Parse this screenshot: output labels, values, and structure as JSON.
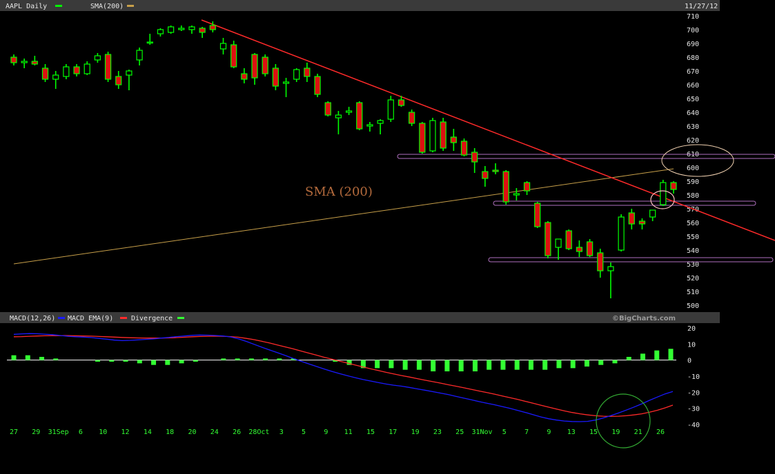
{
  "chart_data": [
    {
      "type": "candlestick",
      "title": "AAPL Daily",
      "date_label": "11/27/12",
      "legend": [
        {
          "name": "AAPL Daily",
          "color": "#00ff00"
        },
        {
          "name": "SMA(200)",
          "color": "#c8a04a"
        }
      ],
      "annotation": "SMA (200)",
      "ylim": [
        500,
        710
      ],
      "yticks": [
        710,
        700,
        690,
        680,
        670,
        660,
        650,
        640,
        630,
        620,
        610,
        600,
        590,
        580,
        570,
        560,
        550,
        540,
        530,
        520,
        510,
        500
      ],
      "xticks": [
        "27",
        "29",
        "31Sep",
        "6",
        "10",
        "12",
        "14",
        "18",
        "20",
        "24",
        "26",
        "28Oct",
        "3",
        "5",
        "9",
        "11",
        "15",
        "17",
        "19",
        "23",
        "25",
        "31Nov",
        "5",
        "7",
        "9",
        "13",
        "15",
        "19",
        "21",
        "26"
      ],
      "candles": [
        {
          "o": 680,
          "h": 682,
          "l": 674,
          "c": 676
        },
        {
          "o": 676,
          "h": 679,
          "l": 672,
          "c": 677
        },
        {
          "o": 677,
          "h": 681,
          "l": 674,
          "c": 675
        },
        {
          "o": 672,
          "h": 675,
          "l": 662,
          "c": 664
        },
        {
          "o": 664,
          "h": 670,
          "l": 657,
          "c": 667
        },
        {
          "o": 666,
          "h": 675,
          "l": 664,
          "c": 673
        },
        {
          "o": 673,
          "h": 675,
          "l": 666,
          "c": 668
        },
        {
          "o": 668,
          "h": 677,
          "l": 667,
          "c": 675
        },
        {
          "o": 678,
          "h": 683,
          "l": 676,
          "c": 681
        },
        {
          "o": 682,
          "h": 684,
          "l": 662,
          "c": 664
        },
        {
          "o": 666,
          "h": 670,
          "l": 657,
          "c": 660
        },
        {
          "o": 667,
          "h": 671,
          "l": 656,
          "c": 670
        },
        {
          "o": 678,
          "h": 687,
          "l": 674,
          "c": 685
        },
        {
          "o": 691,
          "h": 697,
          "l": 689,
          "c": 691
        },
        {
          "o": 697,
          "h": 701,
          "l": 695,
          "c": 700
        },
        {
          "o": 698,
          "h": 703,
          "l": 697,
          "c": 702
        },
        {
          "o": 700,
          "h": 703,
          "l": 699,
          "c": 701
        },
        {
          "o": 700,
          "h": 703,
          "l": 697,
          "c": 702
        },
        {
          "o": 701,
          "h": 702,
          "l": 694,
          "c": 698
        },
        {
          "o": 703,
          "h": 706,
          "l": 698,
          "c": 700
        },
        {
          "o": 686,
          "h": 694,
          "l": 682,
          "c": 690
        },
        {
          "o": 689,
          "h": 692,
          "l": 672,
          "c": 673
        },
        {
          "o": 668,
          "h": 672,
          "l": 661,
          "c": 664
        },
        {
          "o": 682,
          "h": 683,
          "l": 660,
          "c": 665
        },
        {
          "o": 680,
          "h": 682,
          "l": 666,
          "c": 668
        },
        {
          "o": 672,
          "h": 675,
          "l": 656,
          "c": 659
        },
        {
          "o": 661,
          "h": 665,
          "l": 651,
          "c": 662
        },
        {
          "o": 664,
          "h": 672,
          "l": 662,
          "c": 671
        },
        {
          "o": 672,
          "h": 676,
          "l": 662,
          "c": 666
        },
        {
          "o": 666,
          "h": 668,
          "l": 651,
          "c": 653
        },
        {
          "o": 647,
          "h": 648,
          "l": 637,
          "c": 638
        },
        {
          "o": 636,
          "h": 641,
          "l": 624,
          "c": 638
        },
        {
          "o": 640,
          "h": 644,
          "l": 638,
          "c": 641
        },
        {
          "o": 647,
          "h": 648,
          "l": 627,
          "c": 628
        },
        {
          "o": 630,
          "h": 633,
          "l": 626,
          "c": 631
        },
        {
          "o": 632,
          "h": 635,
          "l": 624,
          "c": 634
        },
        {
          "o": 635,
          "h": 652,
          "l": 633,
          "c": 649
        },
        {
          "o": 649,
          "h": 652,
          "l": 644,
          "c": 645
        },
        {
          "o": 640,
          "h": 642,
          "l": 630,
          "c": 632
        },
        {
          "o": 632,
          "h": 633,
          "l": 610,
          "c": 611
        },
        {
          "o": 612,
          "h": 636,
          "l": 611,
          "c": 634
        },
        {
          "o": 633,
          "h": 636,
          "l": 612,
          "c": 614
        },
        {
          "o": 622,
          "h": 628,
          "l": 612,
          "c": 618
        },
        {
          "o": 619,
          "h": 621,
          "l": 608,
          "c": 609
        },
        {
          "o": 611,
          "h": 614,
          "l": 596,
          "c": 604
        },
        {
          "o": 597,
          "h": 601,
          "l": 586,
          "c": 592
        },
        {
          "o": 598,
          "h": 603,
          "l": 595,
          "c": 597
        },
        {
          "o": 597,
          "h": 598,
          "l": 573,
          "c": 575
        },
        {
          "o": 580,
          "h": 585,
          "l": 576,
          "c": 581
        },
        {
          "o": 589,
          "h": 590,
          "l": 580,
          "c": 583
        },
        {
          "o": 574,
          "h": 575,
          "l": 556,
          "c": 557
        },
        {
          "o": 560,
          "h": 561,
          "l": 534,
          "c": 536
        },
        {
          "o": 542,
          "h": 548,
          "l": 533,
          "c": 548
        },
        {
          "o": 554,
          "h": 555,
          "l": 540,
          "c": 541
        },
        {
          "o": 542,
          "h": 547,
          "l": 535,
          "c": 539
        },
        {
          "o": 546,
          "h": 548,
          "l": 535,
          "c": 536
        },
        {
          "o": 538,
          "h": 541,
          "l": 520,
          "c": 525
        },
        {
          "o": 525,
          "h": 531,
          "l": 505,
          "c": 528
        },
        {
          "o": 540,
          "h": 566,
          "l": 539,
          "c": 564
        },
        {
          "o": 567,
          "h": 570,
          "l": 555,
          "c": 559
        },
        {
          "o": 561,
          "h": 563,
          "l": 555,
          "c": 559
        },
        {
          "o": 564,
          "h": 569,
          "l": 561,
          "c": 569
        },
        {
          "o": 573,
          "h": 591,
          "l": 572,
          "c": 589
        },
        {
          "o": 589,
          "h": 590,
          "l": 581,
          "c": 584
        }
      ],
      "sma200": {
        "name": "SMA(200)",
        "start": 530,
        "end": 599
      },
      "downtrend_line": {
        "start": 707,
        "end": 547
      },
      "horizontal_levels": [
        608,
        574,
        533
      ]
    },
    {
      "type": "macd",
      "legend": [
        {
          "name": "MACD(12,26)",
          "color": "#ffffff"
        },
        {
          "name": "MACD EMA(9)",
          "color": "#1a1aff"
        },
        {
          "name": "Divergence",
          "color": "#ff2a2a"
        },
        {
          "name": "",
          "color": "#33ff33"
        }
      ],
      "watermark": "©BigCharts.com",
      "ylim": [
        -40,
        20
      ],
      "yticks": [
        20,
        10,
        0,
        -10,
        -20,
        -30,
        -40
      ],
      "macd_line": [
        16,
        16.3,
        16.5,
        16.4,
        16.1,
        15.8,
        15.3,
        14.8,
        14.5,
        14.3,
        14,
        13.5,
        13,
        12.4,
        12.1,
        12.3,
        12.6,
        12.9,
        13.2,
        13.7,
        14.1,
        14.6,
        15,
        15.4,
        15.6,
        15.5,
        15.3,
        15,
        14.4,
        13.2,
        11.6,
        9.8,
        8,
        6.3,
        4.6,
        2.9,
        1.1,
        -0.6,
        -2.3,
        -3.9,
        -5.5,
        -7,
        -8.4,
        -9.7,
        -10.9,
        -12,
        -13,
        -14,
        -14.9,
        -15.6,
        -16.2,
        -17,
        -17.9,
        -18.7,
        -19.6,
        -20.5,
        -21.4,
        -22.5,
        -23.6,
        -24.7,
        -25.8,
        -26.8,
        -27.8,
        -28.9,
        -30,
        -31.3,
        -32.6,
        -34,
        -35.4,
        -36.5,
        -37.3,
        -37.9,
        -38.2,
        -38.3,
        -38.1,
        -37.3,
        -36,
        -34.5,
        -32.9,
        -31.1,
        -29.2,
        -27.2,
        -25,
        -23,
        -21,
        -19.5
      ],
      "signal_line": [
        14.5,
        14.6,
        14.8,
        15,
        15.1,
        15.2,
        15.2,
        15.2,
        15.1,
        15,
        14.9,
        14.7,
        14.5,
        14.3,
        14.1,
        13.9,
        13.8,
        13.7,
        13.7,
        13.7,
        13.8,
        14,
        14.2,
        14.5,
        14.7,
        14.8,
        14.9,
        14.8,
        14.6,
        14.2,
        13.5,
        12.7,
        11.7,
        10.6,
        9.4,
        8.2,
        7,
        5.7,
        4.4,
        3.1,
        1.8,
        0.6,
        -0.6,
        -1.8,
        -3,
        -4.2,
        -5.4,
        -6.5,
        -7.6,
        -8.6,
        -9.6,
        -10.5,
        -11.5,
        -12.5,
        -13.4,
        -14.3,
        -15.3,
        -16.2,
        -17.2,
        -18.2,
        -19.2,
        -20.2,
        -21.2,
        -22.3,
        -23.4,
        -24.5,
        -25.7,
        -26.9,
        -28.1,
        -29.3,
        -30.5,
        -31.6,
        -32.6,
        -33.4,
        -34.1,
        -34.6,
        -34.9,
        -35,
        -34.9,
        -34.6,
        -34.1,
        -33.4,
        -32.4,
        -31.2,
        -29.7,
        -28
      ],
      "histogram": [
        3,
        3,
        2,
        1,
        0,
        0,
        -1,
        -1,
        -1,
        -2,
        -3,
        -3,
        -2,
        -1,
        0,
        1,
        1,
        1,
        1,
        1,
        1,
        0,
        0,
        -1,
        -3,
        -5,
        -5,
        -5,
        -6,
        -6,
        -7,
        -7,
        -7,
        -7,
        -6,
        -6,
        -6,
        -6,
        -6,
        -5,
        -5,
        -4,
        -3,
        -2,
        2,
        4,
        6,
        7
      ]
    }
  ]
}
